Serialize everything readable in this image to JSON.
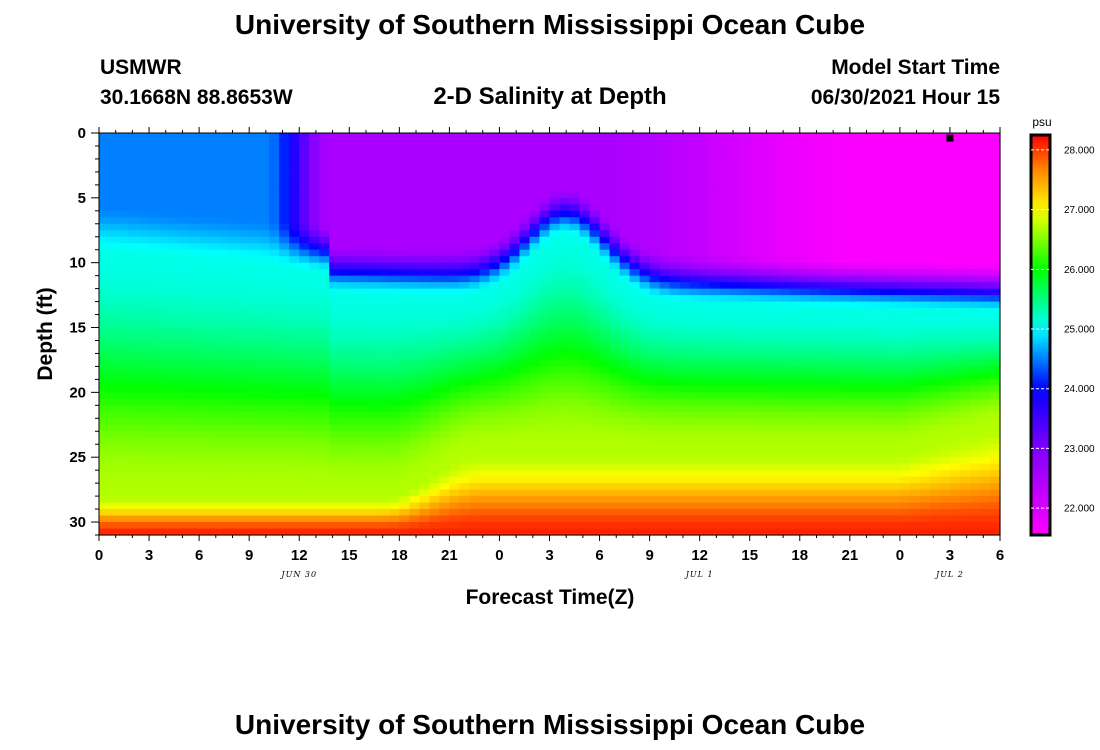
{
  "header": {
    "title_top": "University of Southern Mississippi Ocean Cube",
    "title_bottom": "University of Southern Mississippi Ocean Cube",
    "station": "USMWR",
    "coords": "30.1668N  88.8653W",
    "start_label": "Model Start Time",
    "start_value": "06/30/2021 Hour 15",
    "chart_title": "2-D Salinity at Depth"
  },
  "chart_data": {
    "type": "heatmap",
    "title": "2-D Salinity at Depth",
    "xlabel": "Forecast Time(Z)",
    "ylabel": "Depth (ft)",
    "x_hours": [
      0,
      54
    ],
    "y_range": [
      0,
      31
    ],
    "y_ticks": [
      0,
      5,
      10,
      15,
      20,
      25,
      30
    ],
    "x_ticks": [
      {
        "hour": 0,
        "label": "0"
      },
      {
        "hour": 3,
        "label": "3"
      },
      {
        "hour": 6,
        "label": "6"
      },
      {
        "hour": 9,
        "label": "9"
      },
      {
        "hour": 12,
        "label": "12"
      },
      {
        "hour": 15,
        "label": "15"
      },
      {
        "hour": 18,
        "label": "18"
      },
      {
        "hour": 21,
        "label": "21"
      },
      {
        "hour": 24,
        "label": "0"
      },
      {
        "hour": 27,
        "label": "3"
      },
      {
        "hour": 30,
        "label": "6"
      },
      {
        "hour": 33,
        "label": "9"
      },
      {
        "hour": 36,
        "label": "12"
      },
      {
        "hour": 39,
        "label": "15"
      },
      {
        "hour": 42,
        "label": "18"
      },
      {
        "hour": 45,
        "label": "21"
      },
      {
        "hour": 48,
        "label": "0"
      },
      {
        "hour": 51,
        "label": "3"
      },
      {
        "hour": 54,
        "label": "6"
      }
    ],
    "date_labels": [
      {
        "hour": 12,
        "label": "JUN 30"
      },
      {
        "hour": 36,
        "label": "JUL 1"
      },
      {
        "hour": 51,
        "label": "JUL 2"
      }
    ],
    "marker": {
      "hour": 51,
      "depth": 0.2
    },
    "colorbar": {
      "unit": "psu",
      "min": 21.55,
      "max": 28.25,
      "ticks": [
        {
          "value": 28.0,
          "label": "28.000"
        },
        {
          "value": 27.0,
          "label": "27.000"
        },
        {
          "value": 26.0,
          "label": "26.000"
        },
        {
          "value": 25.0,
          "label": "25.000"
        },
        {
          "value": 24.0,
          "label": "24.000"
        },
        {
          "value": 23.0,
          "label": "23.000"
        },
        {
          "value": 22.0,
          "label": "22.000"
        }
      ]
    },
    "field": {
      "description": "Salinity (psu): fresher low-salinity layer near surface, saltier water at depth",
      "bottom_salinity": 28.1,
      "surface_salinity_range": [
        21.6,
        24.9
      ],
      "halocline_depth_range": [
        7,
        11
      ],
      "bump_hour": 28
    }
  }
}
